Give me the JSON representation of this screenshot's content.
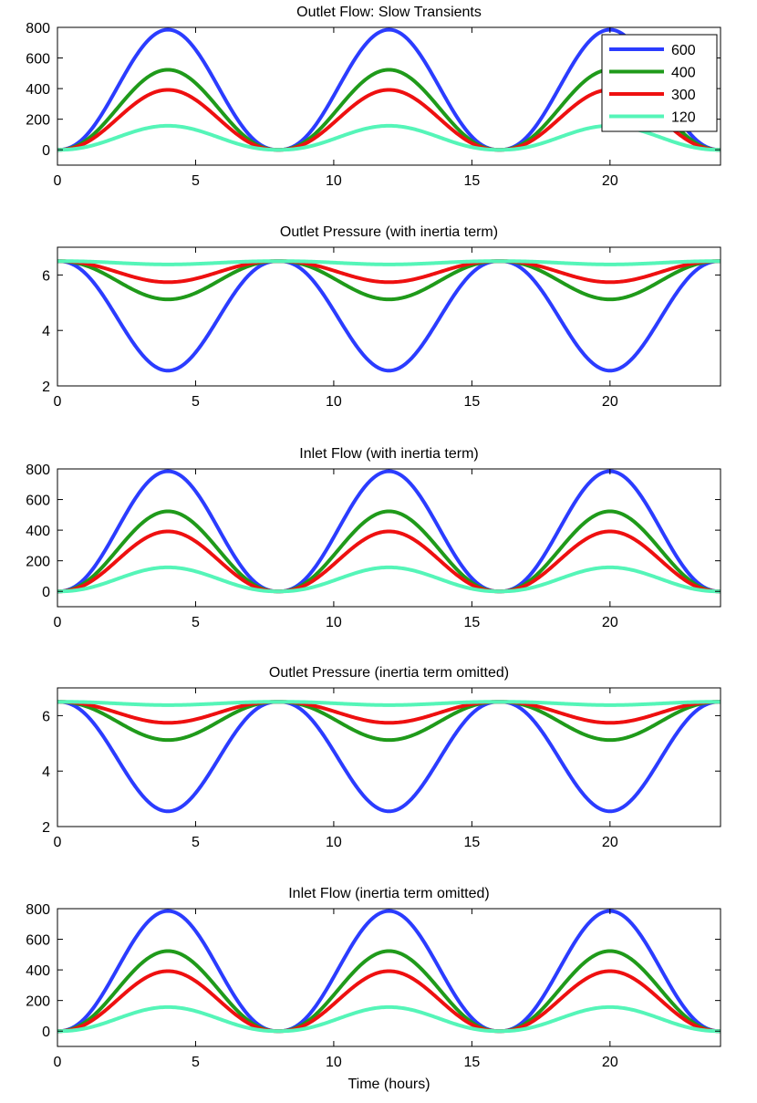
{
  "chart_data": [
    {
      "type": "line",
      "title": "Outlet Flow: Slow Transients",
      "xlabel": "",
      "ylabel": "",
      "xlim": [
        0,
        24
      ],
      "ylim": [
        -100,
        800
      ],
      "xticks": [
        0,
        5,
        10,
        15,
        20
      ],
      "xtick_labels": [
        "0",
        "5",
        "10",
        "15",
        "20"
      ],
      "yticks": [
        0,
        200,
        400,
        600,
        800
      ],
      "ytick_labels": [
        "0",
        "200",
        "400",
        "600",
        "800"
      ],
      "shape": "flow",
      "legend": {
        "position": "top-right",
        "entries": [
          "600",
          "400",
          "300",
          "120"
        ]
      },
      "series": [
        {
          "name": "600",
          "color": "#2b3cff",
          "baseline": 0,
          "extreme": 785
        },
        {
          "name": "400",
          "color": "#1f9a1a",
          "baseline": 0,
          "extreme": 523
        },
        {
          "name": "300",
          "color": "#ee1010",
          "baseline": 0,
          "extreme": 392
        },
        {
          "name": "120",
          "color": "#55f5b8",
          "baseline": 0,
          "extreme": 157
        }
      ]
    },
    {
      "type": "line",
      "title": "Outlet Pressure (with inertia term)",
      "xlabel": "",
      "ylabel": "",
      "xlim": [
        0,
        24
      ],
      "ylim": [
        2,
        7
      ],
      "xticks": [
        0,
        5,
        10,
        15,
        20
      ],
      "xtick_labels": [
        "0",
        "5",
        "10",
        "15",
        "20"
      ],
      "yticks": [
        2,
        4,
        6
      ],
      "ytick_labels": [
        "2",
        "4",
        "6"
      ],
      "shape": "pressure",
      "series": [
        {
          "name": "600",
          "color": "#2b3cff",
          "baseline": 6.5,
          "extreme": 2.55
        },
        {
          "name": "400",
          "color": "#1f9a1a",
          "baseline": 6.5,
          "extreme": 5.12
        },
        {
          "name": "300",
          "color": "#ee1010",
          "baseline": 6.5,
          "extreme": 5.74
        },
        {
          "name": "120",
          "color": "#55f5b8",
          "baseline": 6.5,
          "extreme": 6.38
        }
      ]
    },
    {
      "type": "line",
      "title": "Inlet Flow (with inertia term)",
      "xlabel": "",
      "ylabel": "",
      "xlim": [
        0,
        24
      ],
      "ylim": [
        -100,
        800
      ],
      "xticks": [
        0,
        5,
        10,
        15,
        20
      ],
      "xtick_labels": [
        "0",
        "5",
        "10",
        "15",
        "20"
      ],
      "yticks": [
        0,
        200,
        400,
        600,
        800
      ],
      "ytick_labels": [
        "0",
        "200",
        "400",
        "600",
        "800"
      ],
      "shape": "flow",
      "series": [
        {
          "name": "600",
          "color": "#2b3cff",
          "baseline": 0,
          "extreme": 785
        },
        {
          "name": "400",
          "color": "#1f9a1a",
          "baseline": 0,
          "extreme": 523
        },
        {
          "name": "300",
          "color": "#ee1010",
          "baseline": 0,
          "extreme": 392
        },
        {
          "name": "120",
          "color": "#55f5b8",
          "baseline": 0,
          "extreme": 157
        }
      ]
    },
    {
      "type": "line",
      "title": "Outlet Pressure (inertia term omitted)",
      "xlabel": "",
      "ylabel": "",
      "xlim": [
        0,
        24
      ],
      "ylim": [
        2,
        7
      ],
      "xticks": [
        0,
        5,
        10,
        15,
        20
      ],
      "xtick_labels": [
        "0",
        "5",
        "10",
        "15",
        "20"
      ],
      "yticks": [
        2,
        4,
        6
      ],
      "ytick_labels": [
        "2",
        "4",
        "6"
      ],
      "shape": "pressure",
      "series": [
        {
          "name": "600",
          "color": "#2b3cff",
          "baseline": 6.5,
          "extreme": 2.55
        },
        {
          "name": "400",
          "color": "#1f9a1a",
          "baseline": 6.5,
          "extreme": 5.12
        },
        {
          "name": "300",
          "color": "#ee1010",
          "baseline": 6.5,
          "extreme": 5.74
        },
        {
          "name": "120",
          "color": "#55f5b8",
          "baseline": 6.5,
          "extreme": 6.38
        }
      ]
    },
    {
      "type": "line",
      "title": "Inlet Flow (inertia term omitted)",
      "xlabel": "Time (hours)",
      "ylabel": "",
      "xlim": [
        0,
        24
      ],
      "ylim": [
        -100,
        800
      ],
      "xticks": [
        0,
        5,
        10,
        15,
        20
      ],
      "xtick_labels": [
        "0",
        "5",
        "10",
        "15",
        "20"
      ],
      "yticks": [
        0,
        200,
        400,
        600,
        800
      ],
      "ytick_labels": [
        "0",
        "200",
        "400",
        "600",
        "800"
      ],
      "shape": "flow",
      "series": [
        {
          "name": "600",
          "color": "#2b3cff",
          "baseline": 0,
          "extreme": 785
        },
        {
          "name": "400",
          "color": "#1f9a1a",
          "baseline": 0,
          "extreme": 523
        },
        {
          "name": "300",
          "color": "#ee1010",
          "baseline": 0,
          "extreme": 392
        },
        {
          "name": "120",
          "color": "#55f5b8",
          "baseline": 0,
          "extreme": 157
        }
      ]
    }
  ]
}
